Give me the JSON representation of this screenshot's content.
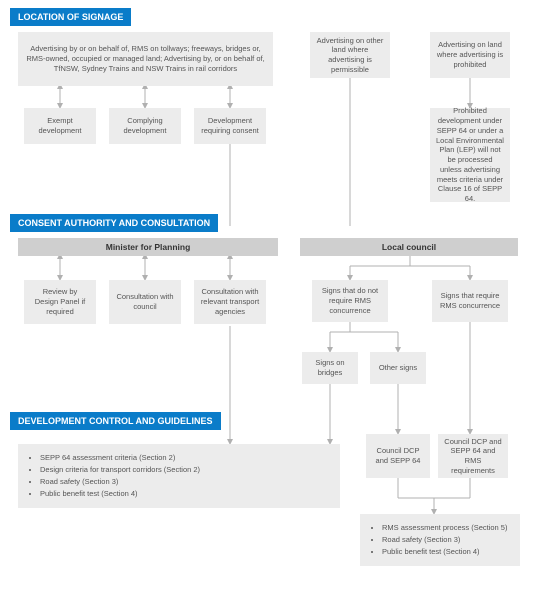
{
  "headers": {
    "location": "LOCATION OF SIGNAGE",
    "consent": "CONSENT AUTHORITY AND CONSULTATION",
    "dev": "DEVELOPMENT CONTROL AND GUIDELINES"
  },
  "boxes": {
    "loc_a": "Advertising by or on behalf of, RMS on tollways; freeways, bridges or, RMS-owned, occupied or managed land; Advertising by, or on behalf of, TfNSW, Sydney Trains and NSW Trains in rail corridors",
    "loc_b": "Advertising on other land where advertising is permissible",
    "loc_c": "Advertising on land where advertising is prohibited",
    "exempt": "Exempt development",
    "complying": "Complying development",
    "reqconsent": "Development requiring consent",
    "prohibited": "Prohibited development under SEPP 64 or under a Local Environmental Plan (LEP) will not be processed unless advertising meets criteria under Clause 16 of SEPP 64.",
    "minister": "Minister for Planning",
    "council": "Local council",
    "review": "Review by Design Panel if required",
    "consult_council": "Consultation with council",
    "consult_transport": "Consultation with relevant transport agencies",
    "norms": "Signs that do not require RMS concurrence",
    "reqrms": "Signs that require RMS concurrence",
    "bridges": "Signs on bridges",
    "other": "Other signs",
    "dcp1": "Council DCP and SEPP 64",
    "dcp2": "Council DCP and SEPP 64 and RMS requirements"
  },
  "lists": {
    "guidelines_left": [
      "SEPP 64 assessment criteria (Section 2)",
      "Design criteria for transport corridors (Section 2)",
      "Road safety (Section 3)",
      "Public benefit test (Section 4)"
    ],
    "guidelines_right": [
      "RMS assessment process (Section 5)",
      "Road safety (Section 3)",
      "Public benefit test (Section 4)"
    ]
  },
  "style": {
    "header_bg": "#0a7cc9",
    "box_bg": "#ececec",
    "auth_bg": "#cfcfcf",
    "line_color": "#b0b0b0",
    "text_color": "#555555"
  }
}
